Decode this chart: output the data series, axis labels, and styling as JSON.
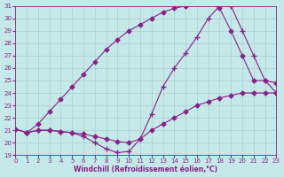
{
  "xlabel": "Windchill (Refroidissement éolien,°C)",
  "background_color": "#c5e8e8",
  "grid_color": "#a8d0d0",
  "line_color": "#882288",
  "x_min": 0,
  "x_max": 23,
  "y_min": 19,
  "y_max": 31,
  "x_ticks": [
    0,
    1,
    2,
    3,
    4,
    5,
    6,
    7,
    8,
    9,
    10,
    11,
    12,
    13,
    14,
    15,
    16,
    17,
    18,
    19,
    20,
    21,
    22,
    23
  ],
  "y_ticks": [
    19,
    20,
    21,
    22,
    23,
    24,
    25,
    26,
    27,
    28,
    29,
    30,
    31
  ],
  "curve1_x": [
    0,
    1,
    2,
    3,
    4,
    5,
    6,
    7,
    8,
    9,
    10,
    11,
    12,
    13,
    14,
    15,
    16,
    17,
    18,
    19,
    20,
    21,
    22,
    23
  ],
  "curve1_y": [
    21.1,
    20.8,
    21.0,
    21.0,
    20.9,
    20.8,
    20.7,
    20.5,
    20.3,
    20.1,
    20.0,
    20.3,
    21.0,
    21.5,
    22.0,
    22.5,
    23.0,
    23.3,
    23.6,
    23.8,
    24.0,
    24.0,
    24.0,
    24.0
  ],
  "curve2_x": [
    0,
    1,
    2,
    3,
    4,
    5,
    6,
    7,
    8,
    9,
    10,
    11,
    12,
    13,
    14,
    15,
    16,
    17,
    18,
    19,
    20,
    21,
    22,
    23
  ],
  "curve2_y": [
    21.1,
    20.8,
    21.0,
    21.0,
    20.9,
    20.8,
    20.5,
    20.0,
    19.5,
    19.2,
    19.3,
    20.3,
    22.3,
    24.5,
    26.0,
    27.2,
    28.5,
    30.0,
    31.0,
    31.0,
    29.0,
    27.0,
    25.0,
    24.0
  ],
  "curve3_x": [
    0,
    1,
    2,
    3,
    4,
    5,
    6,
    7,
    8,
    9,
    10,
    11,
    12,
    13,
    14,
    15,
    16,
    17,
    18,
    19,
    20,
    21,
    22,
    23
  ],
  "curve3_y": [
    21.1,
    20.8,
    21.5,
    22.5,
    23.5,
    24.5,
    25.5,
    26.5,
    27.5,
    28.3,
    29.0,
    29.5,
    30.0,
    30.5,
    30.8,
    31.0,
    31.2,
    31.3,
    30.8,
    29.0,
    27.0,
    25.0,
    25.0,
    24.8
  ]
}
